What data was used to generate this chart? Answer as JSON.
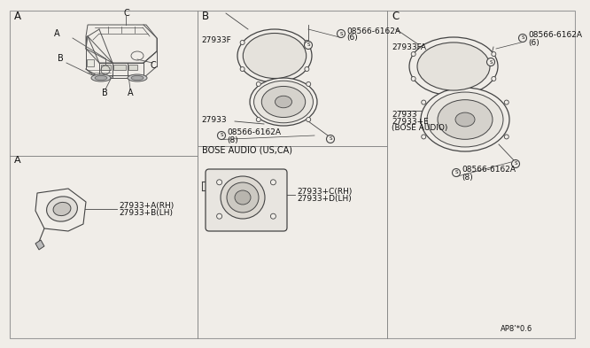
{
  "bg_color": "#f0ede8",
  "line_color": "#444444",
  "text_color": "#111111",
  "title_bottom": "AP8’*0.6",
  "part_numbers": {
    "section_a_small": [
      "27933+A(RH)",
      "27933+B(LH)"
    ],
    "section_b_frame_label": "27933F",
    "section_b_screw_top": "08566-6162A",
    "section_b_screw_top_qty": "(6)",
    "section_b_speaker": "27933",
    "section_b_screw_bot": "08566-6162A",
    "section_b_screw_bot_qty": "(8)",
    "section_b_bose_label": "BOSE AUDIO (US,CA)",
    "section_b_bose_parts_0": "27933+C(RH)",
    "section_b_bose_parts_1": "27933+D(LH)",
    "section_c_bracket": "27933FA",
    "section_c_screw_top": "08566-6162A",
    "section_c_screw_top_qty": "(6)",
    "section_c_speaker": "27933",
    "section_c_bose": "27933+E",
    "section_c_bose_label": "(BOSE AUDIO)",
    "section_c_screw_bot": "08566-6162A",
    "section_c_screw_bot_qty": "(8)"
  }
}
